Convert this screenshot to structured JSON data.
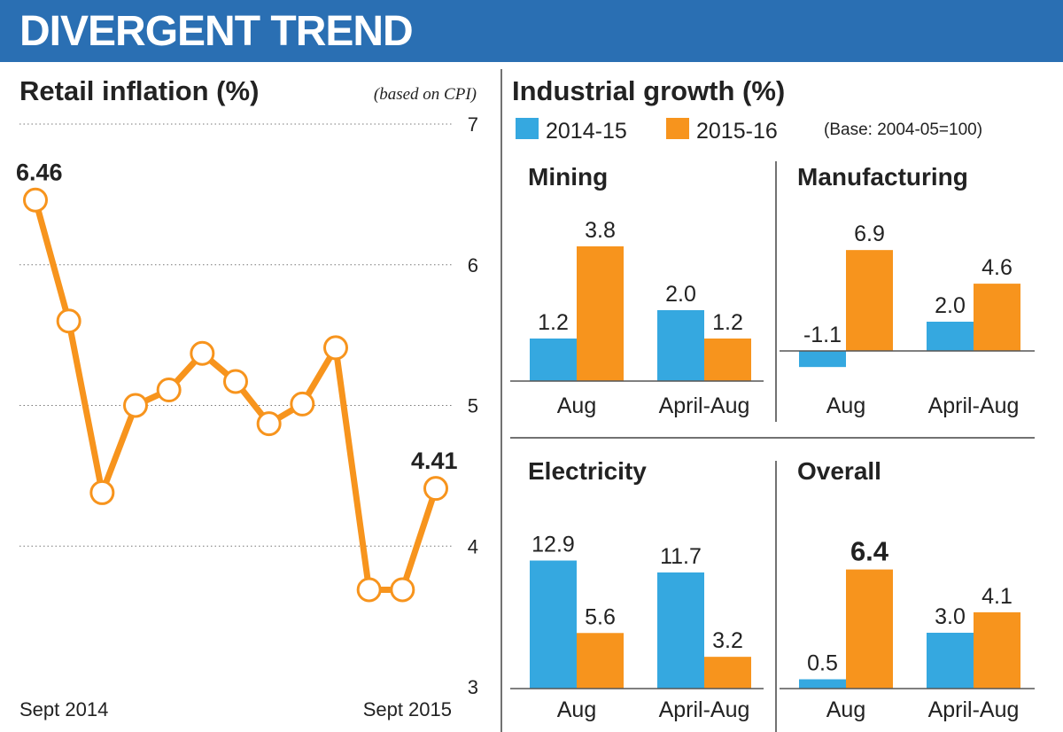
{
  "header": {
    "title": "DIVERGENT TREND"
  },
  "colors": {
    "banner": "#2a6fb3",
    "series_2014": "#35a8e0",
    "series_2015": "#f7941d"
  },
  "chart_data": [
    {
      "type": "line",
      "title": "Retail inflation (%)",
      "subtitle": "(based on CPI)",
      "x_start_label": "Sept 2014",
      "x_end_label": "Sept 2015",
      "y": [
        6.46,
        5.6,
        4.38,
        5.0,
        5.11,
        5.37,
        5.17,
        4.87,
        5.01,
        5.41,
        3.69,
        3.69,
        4.41
      ],
      "ylim": [
        3,
        7
      ],
      "yticks": [
        3,
        4,
        5,
        6,
        7
      ],
      "point_labels": [
        {
          "index": 0,
          "text": "6.46"
        },
        {
          "index": 12,
          "text": "4.41"
        }
      ],
      "grid": true
    },
    {
      "type": "bar",
      "title": "Industrial growth (%)",
      "base_note": "(Base: 2004-05=100)",
      "legend": [
        "2014-15",
        "2015-16"
      ],
      "categories": [
        "Aug",
        "April-Aug"
      ],
      "panels": [
        {
          "title": "Mining",
          "series": [
            {
              "name": "2014-15",
              "values": [
                1.2,
                2.0
              ]
            },
            {
              "name": "2015-16",
              "values": [
                3.8,
                1.2
              ]
            }
          ],
          "labels": [
            [
              "1.2",
              "2.0"
            ],
            [
              "3.8",
              "1.2"
            ]
          ]
        },
        {
          "title": "Manufacturing",
          "series": [
            {
              "name": "2014-15",
              "values": [
                -1.1,
                2.0
              ]
            },
            {
              "name": "2015-16",
              "values": [
                6.9,
                4.6
              ]
            }
          ],
          "labels": [
            [
              "-1.1",
              "2.0"
            ],
            [
              "6.9",
              "4.6"
            ]
          ]
        },
        {
          "title": "Electricity",
          "series": [
            {
              "name": "2014-15",
              "values": [
                12.9,
                11.7
              ]
            },
            {
              "name": "2015-16",
              "values": [
                5.6,
                3.2
              ]
            }
          ],
          "labels": [
            [
              "12.9",
              "11.7"
            ],
            [
              "5.6",
              "3.2"
            ]
          ]
        },
        {
          "title": "Overall",
          "series": [
            {
              "name": "2014-15",
              "values": [
                0.5,
                3.0
              ]
            },
            {
              "name": "2015-16",
              "values": [
                6.4,
                4.1
              ]
            }
          ],
          "labels": [
            [
              "0.5",
              "3.0"
            ],
            [
              "6.4",
              "4.1"
            ]
          ]
        }
      ]
    }
  ]
}
